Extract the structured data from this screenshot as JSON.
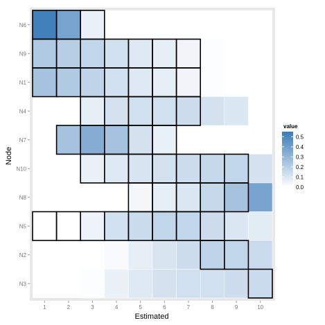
{
  "chart_data": {
    "type": "heatmap",
    "xlabel": "Estimated",
    "ylabel": "Node",
    "x_categories": [
      "1",
      "2",
      "3",
      "4",
      "5",
      "6",
      "7",
      "8",
      "9",
      "10"
    ],
    "y_categories": [
      "N6",
      "N9",
      "N1",
      "N4",
      "N7",
      "N10",
      "N8",
      "N5",
      "N2",
      "N3"
    ],
    "values": [
      [
        0.53,
        0.38,
        0.06,
        null,
        null,
        null,
        null,
        null,
        null,
        null
      ],
      [
        0.22,
        0.2,
        0.17,
        0.13,
        0.09,
        0.07,
        0.04,
        0.01,
        null,
        null
      ],
      [
        0.25,
        0.22,
        0.18,
        0.13,
        0.09,
        0.07,
        0.04,
        0.01,
        null,
        null
      ],
      [
        null,
        null,
        0.07,
        0.12,
        0.13,
        0.13,
        0.14,
        0.12,
        0.1,
        null
      ],
      [
        null,
        0.25,
        0.34,
        0.25,
        0.12,
        0.06,
        null,
        null,
        null,
        null
      ],
      [
        null,
        null,
        0.06,
        0.09,
        0.11,
        0.12,
        0.14,
        0.16,
        0.17,
        0.12
      ],
      [
        null,
        null,
        null,
        null,
        0.03,
        0.07,
        0.1,
        0.16,
        0.25,
        0.38
      ],
      [
        null,
        null,
        0.05,
        0.13,
        0.15,
        0.17,
        0.17,
        0.14,
        0.1,
        0.08
      ],
      [
        null,
        null,
        null,
        0.02,
        0.07,
        0.11,
        0.14,
        0.18,
        0.17,
        0.15
      ],
      [
        null,
        null,
        0.01,
        0.06,
        0.09,
        0.12,
        0.13,
        0.13,
        0.14,
        0.15
      ]
    ],
    "estimated": {
      "N6": 3,
      "N9": 7,
      "N1": 7,
      "N4": 7,
      "N7": 6,
      "N10": 9,
      "N8": 9,
      "N5": 8,
      "N2": 9,
      "N3": 10
    },
    "actual": {
      "N6": 1,
      "N9": 1,
      "N1": 1,
      "N4": 3,
      "N7": 2,
      "N10": 3,
      "N8": 5,
      "N5": 1,
      "N2": 8,
      "N3": 10
    },
    "legend": {
      "title": "value",
      "ticks": [
        "0.5",
        "0.4",
        "0.3",
        "0.2",
        "0.1",
        "0.0"
      ],
      "min": 0,
      "max": 0.55,
      "position": "right"
    },
    "colors": {
      "high": "#3a7bb8",
      "low": "#ffffff",
      "panel": "#e8e8e8",
      "highlight_border": "#000000"
    },
    "grid": true
  }
}
